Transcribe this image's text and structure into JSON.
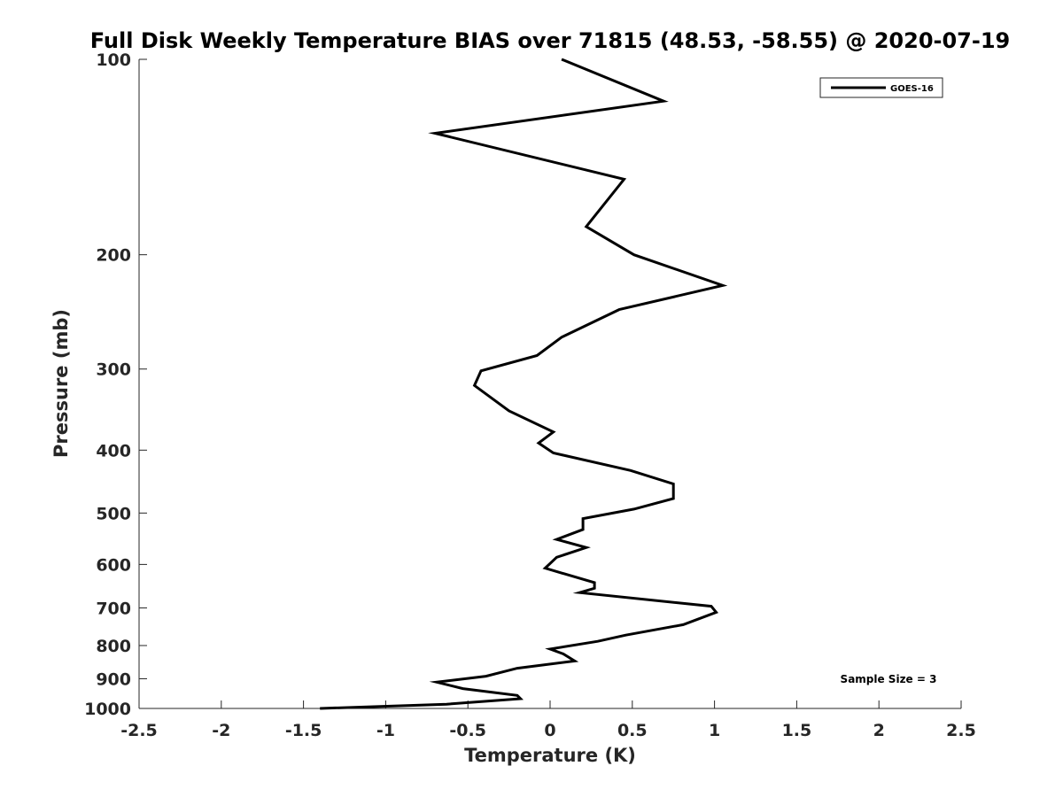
{
  "chart_data": {
    "type": "line",
    "title": "Full Disk Weekly Temperature BIAS over 71815 (48.53, -58.55) @ 2020-07-19",
    "xlabel": "Temperature (K)",
    "ylabel": "Pressure (mb)",
    "xlim": [
      -2.5,
      2.5
    ],
    "ylim": [
      100,
      1000
    ],
    "yscale": "log",
    "y_reversed": true,
    "grid": false,
    "legend_position": "top-right",
    "x_ticks": [
      -2.5,
      -2,
      -1.5,
      -1,
      -0.5,
      0,
      0.5,
      1,
      1.5,
      2,
      2.5
    ],
    "x_tick_labels": [
      "-2.5",
      "-2",
      "-1.5",
      "-1",
      "-0.5",
      "0",
      "0.5",
      "1",
      "1.5",
      "2",
      "2.5"
    ],
    "y_ticks": [
      100,
      200,
      300,
      400,
      500,
      600,
      700,
      800,
      900,
      1000
    ],
    "y_tick_labels": [
      "100",
      "200",
      "300",
      "400",
      "500",
      "600",
      "700",
      "800",
      "900",
      "1000"
    ],
    "series": [
      {
        "name": "GOES-16",
        "color": "#000000",
        "x": [
          0.07,
          0.69,
          -0.7,
          0.45,
          0.22,
          0.51,
          1.05,
          0.42,
          0.07,
          -0.08,
          -0.42,
          -0.46,
          -0.25,
          0.02,
          -0.07,
          0.02,
          0.49,
          0.75,
          0.75,
          0.51,
          0.2,
          0.2,
          0.04,
          0.22,
          0.04,
          -0.03,
          0.27,
          0.27,
          0.18,
          0.98,
          1.01,
          0.81,
          0.46,
          0.29,
          0.0,
          0.08,
          0.15,
          -0.2,
          -0.39,
          -0.69,
          -0.53,
          -0.2,
          -0.18,
          -0.63,
          -1.4
        ],
        "y": [
          100,
          116,
          130,
          153,
          181,
          200,
          223,
          243,
          268,
          286,
          302,
          318,
          348,
          375,
          390,
          404,
          430,
          451,
          475,
          493,
          510,
          530,
          549,
          565,
          585,
          608,
          640,
          653,
          663,
          696,
          711,
          743,
          771,
          788,
          810,
          824,
          845,
          867,
          892,
          911,
          932,
          955,
          966,
          985,
          1005
        ]
      }
    ],
    "annotations": [
      "Sample Size = 3"
    ]
  }
}
